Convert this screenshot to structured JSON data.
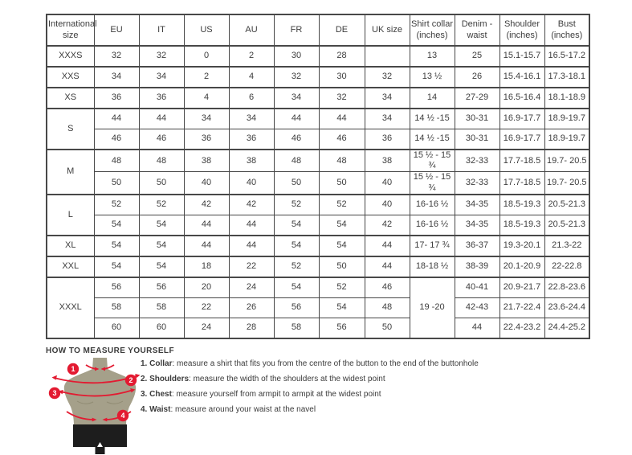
{
  "table": {
    "headers": [
      "International size",
      "EU",
      "IT",
      "US",
      "AU",
      "FR",
      "DE",
      "UK size",
      "Shirt collar (inches)",
      "Denim - waist",
      "Shoulder (inches)",
      "Bust (inches)"
    ],
    "groups": [
      {
        "size": "XXXS",
        "rows": [
          [
            "32",
            "32",
            "0",
            "2",
            "30",
            "28",
            "",
            "13",
            "25",
            "15.1-15.7",
            "16.5-17.2"
          ]
        ]
      },
      {
        "size": "XXS",
        "rows": [
          [
            "34",
            "34",
            "2",
            "4",
            "32",
            "30",
            "32",
            "13 ½",
            "26",
            "15.4-16.1",
            "17.3-18.1"
          ]
        ]
      },
      {
        "size": "XS",
        "rows": [
          [
            "36",
            "36",
            "4",
            "6",
            "34",
            "32",
            "34",
            "14",
            "27-29",
            "16.5-16.4",
            "18.1-18.9"
          ]
        ]
      },
      {
        "size": "S",
        "rows": [
          [
            "44",
            "44",
            "34",
            "34",
            "44",
            "44",
            "34",
            "14 ½ -15",
            "30-31",
            "16.9-17.7",
            "18.9-19.7"
          ],
          [
            "46",
            "46",
            "36",
            "36",
            "46",
            "46",
            "36",
            "14 ½ -15",
            "30-31",
            "16.9-17.7",
            "18.9-19.7"
          ]
        ]
      },
      {
        "size": "M",
        "rows": [
          [
            "48",
            "48",
            "38",
            "38",
            "48",
            "48",
            "38",
            "15 ½ - 15 ¾",
            "32-33",
            "17.7-18.5",
            "19.7- 20.5"
          ],
          [
            "50",
            "50",
            "40",
            "40",
            "50",
            "50",
            "40",
            "15 ½ - 15 ¾",
            "32-33",
            "17.7-18.5",
            "19.7- 20.5"
          ]
        ]
      },
      {
        "size": "L",
        "rows": [
          [
            "52",
            "52",
            "42",
            "42",
            "52",
            "52",
            "40",
            "16-16 ½",
            "34-35",
            "18.5-19.3",
            "20.5-21.3"
          ],
          [
            "54",
            "54",
            "44",
            "44",
            "54",
            "54",
            "42",
            "16-16 ½",
            "34-35",
            "18.5-19.3",
            "20.5-21.3"
          ]
        ]
      },
      {
        "size": "XL",
        "rows": [
          [
            "54",
            "54",
            "44",
            "44",
            "54",
            "54",
            "44",
            "17- 17 ¾",
            "36-37",
            "19.3-20.1",
            "21.3-22"
          ]
        ]
      },
      {
        "size": "XXL",
        "rows": [
          [
            "54",
            "54",
            "18",
            "22",
            "52",
            "50",
            "44",
            "18-18 ½",
            "38-39",
            "20.1-20.9",
            "22-22.8"
          ]
        ]
      },
      {
        "size": "XXXL",
        "shared_collar": "19 -20",
        "rows": [
          [
            "56",
            "56",
            "20",
            "24",
            "54",
            "52",
            "46",
            "40-41",
            "20.9-21.7",
            "22.8-23.6"
          ],
          [
            "58",
            "58",
            "22",
            "26",
            "56",
            "54",
            "48",
            "42-43",
            "21.7-22.4",
            "23.6-24.4"
          ],
          [
            "60",
            "60",
            "24",
            "28",
            "58",
            "56",
            "50",
            "44",
            "22.4-23.2",
            "24.4-25.2"
          ]
        ]
      }
    ]
  },
  "measure": {
    "heading": "HOW TO MEASURE YOURSELF",
    "items": [
      {
        "num": "1.",
        "label": "Collar",
        "text": ": measure a shirt that fits you from the centre of the button to the end of the buttonhole"
      },
      {
        "num": "2.",
        "label": "Shoulders",
        "text": ": measure the width of the shoulders at the widest point"
      },
      {
        "num": "3.",
        "label": "Chest",
        "text": ": measure yourself from armpit to armpit at the widest point"
      },
      {
        "num": "4.",
        "label": "Waist",
        "text": ": measure around your waist at the navel"
      }
    ],
    "figure_markers": [
      "1",
      "2",
      "3",
      "4"
    ]
  },
  "colors": {
    "accent_red": "#e31a31",
    "torso": "#a5a08a",
    "shorts": "#1d1d1d",
    "table_border": "#484848",
    "text": "#3d3d3d"
  }
}
